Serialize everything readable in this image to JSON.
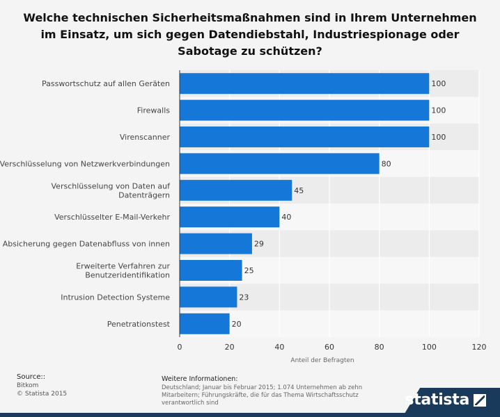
{
  "title": "Welche technischen Sicherheitsmaßnahmen sind in Ihrem Unternehmen im Einsatz, um sich gegen Datendiebstahl, Industriespionage oder Sabotage zu schützen?",
  "chart_data": {
    "type": "bar",
    "orientation": "horizontal",
    "categories": [
      "Passwortschutz auf allen Geräten",
      "Firewalls",
      "Virenscanner",
      "Verschlüsselung von Netzwerkverbindungen",
      "Verschlüsselung von Daten auf Datenträgern",
      "Verschlüsselter E-Mail-Verkehr",
      "Absicherung gegen Datenabfluss von innen",
      "Erweiterte Verfahren zur Benutzeridentifikation",
      "Intrusion Detection Systeme",
      "Penetrationstest"
    ],
    "category_lines": [
      [
        "Passwortschutz auf allen Geräten"
      ],
      [
        "Firewalls"
      ],
      [
        "Virenscanner"
      ],
      [
        "Verschlüsselung von Netzwerkverbindungen"
      ],
      [
        "Verschlüsselung von Daten auf",
        "Datenträgern"
      ],
      [
        "Verschlüsselter E-Mail-Verkehr"
      ],
      [
        "Absicherung gegen Datenabfluss von innen"
      ],
      [
        "Erweiterte Verfahren zur",
        "Benutzeridentifikation"
      ],
      [
        "Intrusion Detection Systeme"
      ],
      [
        "Penetrationstest"
      ]
    ],
    "values": [
      100,
      100,
      100,
      80,
      45,
      40,
      29,
      25,
      23,
      20
    ],
    "xlim": [
      0,
      120
    ],
    "xticks": [
      0,
      20,
      40,
      60,
      80,
      100,
      120
    ],
    "xlabel": "Anteil der Befragten",
    "ylabel": "",
    "bar_color": "#1577d8",
    "grid": true
  },
  "source": {
    "heading": "Source::",
    "lines": [
      "Bitkom",
      "© Statista 2015"
    ]
  },
  "more_info": {
    "heading": "Weitere Informationen:",
    "text": "Deutschland; Januar bis Februar 2015; 1.074 Unternehmen ab zehn Mitarbeitern; Führungskräfte, die für das Thema Wirtschaftsschutz verantwortlich sind"
  },
  "brand": {
    "name": "statista",
    "color": "#1a3a5c"
  }
}
